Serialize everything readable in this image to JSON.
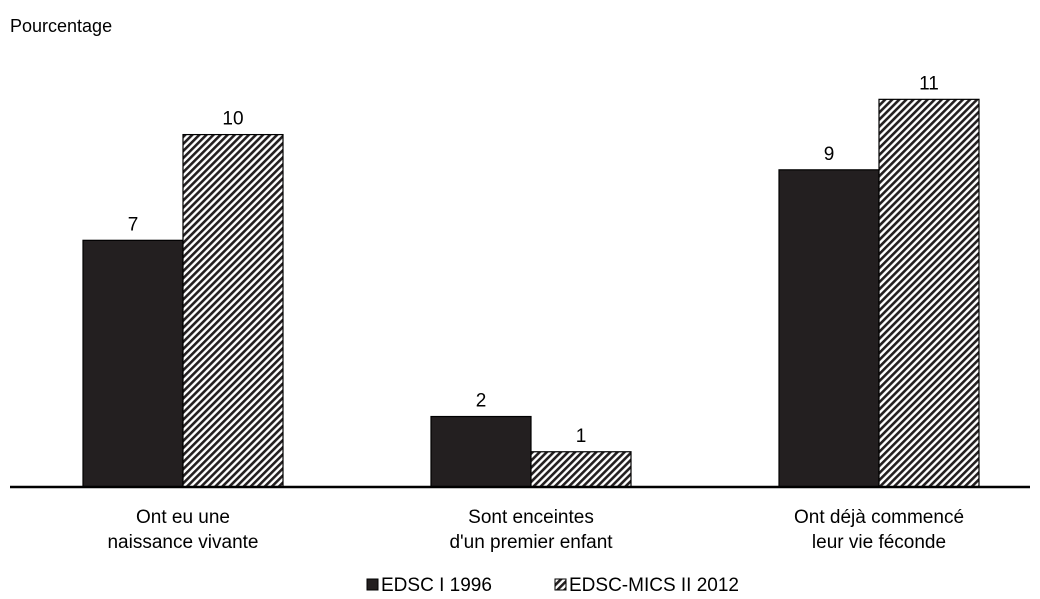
{
  "chart_data": {
    "type": "bar",
    "title": "",
    "ylabel": "Pourcentage",
    "xlabel": "",
    "categories": [
      [
        "Ont eu une",
        "naissance vivante"
      ],
      [
        "Sont enceintes",
        "d'un premier enfant"
      ],
      [
        "Ont déjà commencé",
        "leur vie féconde"
      ]
    ],
    "series": [
      {
        "name": "EDSC I 1996",
        "values": [
          7,
          2,
          9
        ],
        "color": "#231f20",
        "pattern": "solid"
      },
      {
        "name": "EDSC-MICS II 2012",
        "values": [
          10,
          1,
          11
        ],
        "color": "#231f20",
        "pattern": "diagonal-hatch"
      }
    ],
    "ylim": [
      0,
      12.4
    ],
    "grid": false,
    "legend_position": "bottom"
  }
}
